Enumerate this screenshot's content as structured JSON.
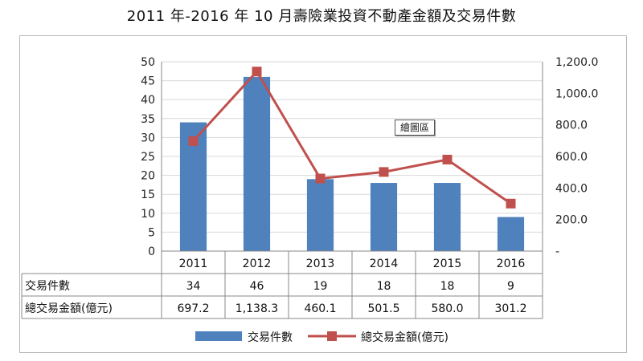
{
  "title": "2011 年-2016 年 10 月壽險業投資不動產金額及交易件數",
  "tooltip": "繪圖區",
  "colors": {
    "bar": "#4f81bd",
    "line": "#c0504d",
    "grid": "#d9d9d9",
    "axis": "#888888"
  },
  "chart_data": {
    "type": "bar",
    "categories": [
      "2011",
      "2012",
      "2013",
      "2014",
      "2015",
      "2016"
    ],
    "series": [
      {
        "name": "交易件數",
        "type": "bar",
        "axis": "left",
        "values": [
          34,
          46,
          19,
          18,
          18,
          9
        ]
      },
      {
        "name": "總交易金額(億元)",
        "type": "line",
        "axis": "right",
        "values": [
          697.2,
          1138.3,
          460.1,
          501.5,
          580.0,
          301.2
        ]
      }
    ],
    "y_left": {
      "min": 0,
      "max": 50,
      "step": 5
    },
    "y_right": {
      "min": 0,
      "max": 1200,
      "step": 200,
      "tick_labels": [
        "-",
        "200.0",
        "400.0",
        "600.0",
        "800.0",
        "1,000.0",
        "1,200.0"
      ]
    },
    "table": {
      "row_labels": [
        "交易件數",
        "總交易金額(億元)"
      ],
      "rows": [
        [
          "34",
          "46",
          "19",
          "18",
          "18",
          "9"
        ],
        [
          "697.2",
          "1,138.3",
          "460.1",
          "501.5",
          "580.0",
          "301.2"
        ]
      ]
    },
    "legend": {
      "position": "bottom",
      "entries": [
        "交易件數",
        "總交易金額(億元)"
      ]
    },
    "grid": true
  }
}
